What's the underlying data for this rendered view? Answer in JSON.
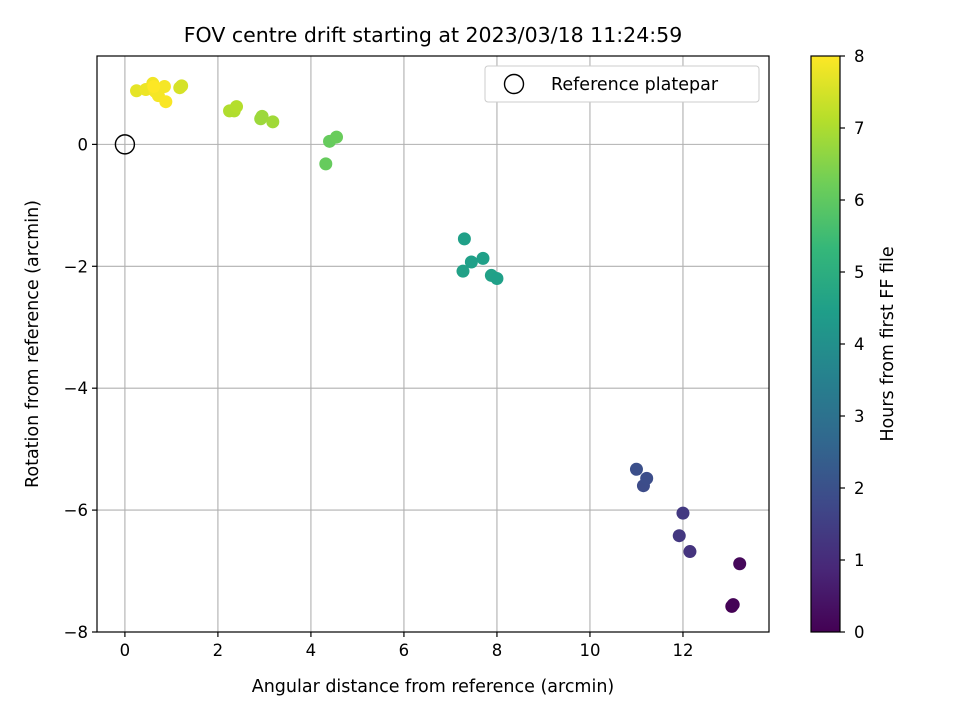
{
  "chart_data": {
    "type": "scatter",
    "title": "FOV centre drift starting at 2023/03/18 11:24:59",
    "xlabel": "Angular distance from reference (arcmin)",
    "ylabel": "Rotation from reference (arcmin)",
    "xlim": [
      -0.6,
      13.85
    ],
    "ylim": [
      -8.0,
      1.45
    ],
    "xticks": [
      0,
      2,
      4,
      6,
      8,
      10,
      12
    ],
    "yticks": [
      -8,
      -6,
      -4,
      -2,
      0
    ],
    "grid": true,
    "legend": {
      "placement": "upper right",
      "entries": [
        {
          "label": "Reference platepar",
          "marker": "open-circle"
        }
      ]
    },
    "reference_point": {
      "x": 0,
      "y": 0
    },
    "colorbar": {
      "label": "Hours from first FF file",
      "colormap": "viridis",
      "range": [
        0,
        8
      ],
      "ticks": [
        0,
        1,
        2,
        3,
        4,
        5,
        6,
        7,
        8
      ]
    },
    "points": [
      {
        "x": 13.05,
        "y": -7.58,
        "c": 0.0
      },
      {
        "x": 13.08,
        "y": -7.55,
        "c": 0.05
      },
      {
        "x": 13.22,
        "y": -6.88,
        "c": 0.15
      },
      {
        "x": 12.15,
        "y": -6.68,
        "c": 1.2
      },
      {
        "x": 11.92,
        "y": -6.42,
        "c": 1.3
      },
      {
        "x": 12.0,
        "y": -6.05,
        "c": 1.35
      },
      {
        "x": 11.15,
        "y": -5.6,
        "c": 1.85
      },
      {
        "x": 11.22,
        "y": -5.48,
        "c": 1.9
      },
      {
        "x": 11.0,
        "y": -5.33,
        "c": 1.95
      },
      {
        "x": 7.3,
        "y": -1.55,
        "c": 4.5
      },
      {
        "x": 7.7,
        "y": -1.87,
        "c": 4.5
      },
      {
        "x": 7.45,
        "y": -1.93,
        "c": 4.5
      },
      {
        "x": 7.27,
        "y": -2.08,
        "c": 4.55
      },
      {
        "x": 7.88,
        "y": -2.15,
        "c": 4.55
      },
      {
        "x": 8.0,
        "y": -2.2,
        "c": 4.5
      },
      {
        "x": 4.32,
        "y": -0.32,
        "c": 6.1
      },
      {
        "x": 4.4,
        "y": 0.05,
        "c": 6.1
      },
      {
        "x": 4.55,
        "y": 0.12,
        "c": 6.15
      },
      {
        "x": 2.92,
        "y": 0.42,
        "c": 6.8
      },
      {
        "x": 2.95,
        "y": 0.46,
        "c": 6.8
      },
      {
        "x": 3.18,
        "y": 0.37,
        "c": 6.85
      },
      {
        "x": 2.25,
        "y": 0.55,
        "c": 7.05
      },
      {
        "x": 2.35,
        "y": 0.55,
        "c": 7.05
      },
      {
        "x": 2.4,
        "y": 0.62,
        "c": 7.1
      },
      {
        "x": 1.18,
        "y": 0.93,
        "c": 7.5
      },
      {
        "x": 1.22,
        "y": 0.96,
        "c": 7.5
      },
      {
        "x": 0.25,
        "y": 0.88,
        "c": 7.7
      },
      {
        "x": 0.45,
        "y": 0.9,
        "c": 7.8
      },
      {
        "x": 0.6,
        "y": 1.0,
        "c": 7.85
      },
      {
        "x": 0.65,
        "y": 0.87,
        "c": 7.9
      },
      {
        "x": 0.72,
        "y": 0.8,
        "c": 7.9
      },
      {
        "x": 0.85,
        "y": 0.95,
        "c": 7.9
      },
      {
        "x": 0.88,
        "y": 0.7,
        "c": 7.95
      },
      {
        "x": 0.62,
        "y": 0.95,
        "c": 8.0
      }
    ]
  }
}
